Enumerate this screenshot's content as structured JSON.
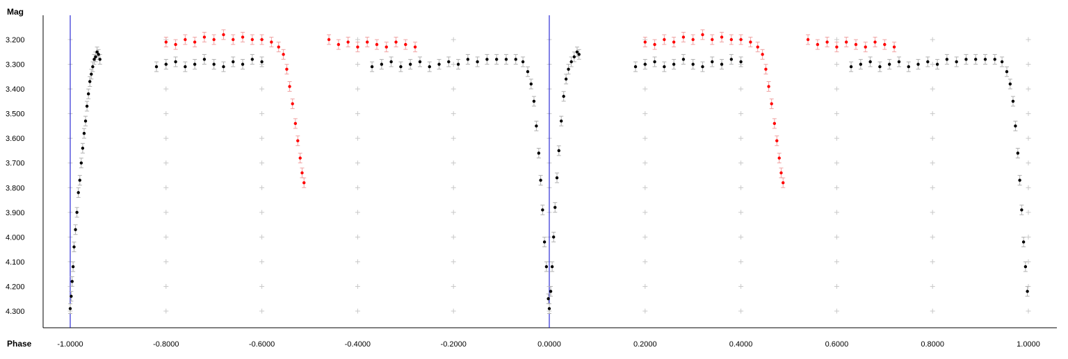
{
  "chart_data": {
    "type": "scatter",
    "title": "",
    "xlabel": "Phase",
    "ylabel": "Mag",
    "y_inverted": true,
    "xlim": [
      -1.0,
      1.0
    ],
    "ylim": [
      3.2,
      4.3
    ],
    "x_ticks": [
      "-1.0000",
      "-0.8000",
      "-0.6000",
      "-0.4000",
      "-0.2000",
      "0.0000",
      "0.2000",
      "0.4000",
      "0.6000",
      "0.8000",
      "1.0000"
    ],
    "x_tick_values": [
      -1.0,
      -0.8,
      -0.6,
      -0.4,
      -0.2,
      0.0,
      0.2,
      0.4,
      0.6,
      0.8,
      1.0
    ],
    "y_ticks": [
      "3.200",
      "3.300",
      "3.400",
      "3.500",
      "3.600",
      "3.700",
      "3.800",
      "3.900",
      "4.000",
      "4.100",
      "4.200",
      "4.300"
    ],
    "y_tick_values": [
      3.2,
      3.3,
      3.4,
      3.5,
      3.6,
      3.7,
      3.8,
      3.9,
      4.0,
      4.1,
      4.2,
      4.3
    ],
    "grid": "plus-markers",
    "reference_lines_x": [
      -1.0,
      0.0
    ],
    "colors": {
      "series_black": "#000000",
      "series_red": "#ff0000",
      "errorbar_black": "#b0b0b0",
      "errorbar_red": "#f0a0a0",
      "reference_line": "#0000cc",
      "grid_marker": "#c8c8c8"
    },
    "series": [
      {
        "color": "black",
        "points": [
          [
            -1.0,
            4.29
          ],
          [
            -0.998,
            4.24
          ],
          [
            -0.996,
            4.18
          ],
          [
            -0.994,
            4.12
          ],
          [
            -0.992,
            4.04
          ],
          [
            -0.989,
            3.97
          ],
          [
            -0.986,
            3.9
          ],
          [
            -0.983,
            3.82
          ],
          [
            -0.98,
            3.77
          ],
          [
            -0.977,
            3.7
          ],
          [
            -0.974,
            3.64
          ],
          [
            -0.971,
            3.58
          ],
          [
            -0.968,
            3.53
          ],
          [
            -0.965,
            3.47
          ],
          [
            -0.962,
            3.42
          ],
          [
            -0.959,
            3.37
          ],
          [
            -0.956,
            3.34
          ],
          [
            -0.953,
            3.31
          ],
          [
            -0.95,
            3.28
          ],
          [
            -0.947,
            3.27
          ],
          [
            -0.944,
            3.25
          ],
          [
            -0.941,
            3.26
          ],
          [
            -0.938,
            3.28
          ],
          [
            -0.82,
            3.31
          ],
          [
            -0.8,
            3.3
          ],
          [
            -0.78,
            3.29
          ],
          [
            -0.76,
            3.31
          ],
          [
            -0.74,
            3.3
          ],
          [
            -0.72,
            3.28
          ],
          [
            -0.7,
            3.3
          ],
          [
            -0.68,
            3.31
          ],
          [
            -0.66,
            3.29
          ],
          [
            -0.64,
            3.3
          ],
          [
            -0.62,
            3.28
          ],
          [
            -0.6,
            3.29
          ],
          [
            -0.37,
            3.31
          ],
          [
            -0.35,
            3.3
          ],
          [
            -0.33,
            3.29
          ],
          [
            -0.31,
            3.31
          ],
          [
            -0.29,
            3.3
          ],
          [
            -0.27,
            3.29
          ],
          [
            -0.25,
            3.31
          ],
          [
            -0.23,
            3.3
          ],
          [
            -0.21,
            3.29
          ],
          [
            -0.19,
            3.3
          ],
          [
            -0.17,
            3.28
          ],
          [
            -0.15,
            3.29
          ],
          [
            -0.13,
            3.28
          ],
          [
            -0.11,
            3.28
          ],
          [
            -0.09,
            3.28
          ],
          [
            -0.07,
            3.28
          ],
          [
            -0.055,
            3.29
          ],
          [
            -0.045,
            3.33
          ],
          [
            -0.038,
            3.38
          ],
          [
            -0.032,
            3.45
          ],
          [
            -0.027,
            3.55
          ],
          [
            -0.022,
            3.66
          ],
          [
            -0.018,
            3.77
          ],
          [
            -0.014,
            3.89
          ],
          [
            -0.01,
            4.02
          ],
          [
            -0.006,
            4.12
          ],
          [
            -0.002,
            4.25
          ],
          [
            0.0,
            4.29
          ],
          [
            0.003,
            4.22
          ],
          [
            0.006,
            4.12
          ],
          [
            0.009,
            4.0
          ],
          [
            0.012,
            3.88
          ],
          [
            0.016,
            3.76
          ],
          [
            0.02,
            3.65
          ],
          [
            0.025,
            3.53
          ],
          [
            0.03,
            3.43
          ],
          [
            0.035,
            3.36
          ],
          [
            0.04,
            3.32
          ],
          [
            0.046,
            3.29
          ],
          [
            0.052,
            3.27
          ],
          [
            0.058,
            3.25
          ],
          [
            0.062,
            3.26
          ],
          [
            0.18,
            3.31
          ],
          [
            0.2,
            3.3
          ],
          [
            0.22,
            3.29
          ],
          [
            0.24,
            3.31
          ],
          [
            0.26,
            3.3
          ],
          [
            0.28,
            3.28
          ],
          [
            0.3,
            3.3
          ],
          [
            0.32,
            3.31
          ],
          [
            0.34,
            3.29
          ],
          [
            0.36,
            3.3
          ],
          [
            0.38,
            3.28
          ],
          [
            0.4,
            3.29
          ],
          [
            0.63,
            3.31
          ],
          [
            0.65,
            3.3
          ],
          [
            0.67,
            3.29
          ],
          [
            0.69,
            3.31
          ],
          [
            0.71,
            3.3
          ],
          [
            0.73,
            3.29
          ],
          [
            0.75,
            3.31
          ],
          [
            0.77,
            3.3
          ],
          [
            0.79,
            3.29
          ],
          [
            0.81,
            3.3
          ],
          [
            0.83,
            3.28
          ],
          [
            0.85,
            3.29
          ],
          [
            0.87,
            3.28
          ],
          [
            0.89,
            3.28
          ],
          [
            0.91,
            3.28
          ],
          [
            0.93,
            3.28
          ],
          [
            0.945,
            3.29
          ],
          [
            0.955,
            3.33
          ],
          [
            0.962,
            3.38
          ],
          [
            0.968,
            3.45
          ],
          [
            0.973,
            3.55
          ],
          [
            0.978,
            3.66
          ],
          [
            0.982,
            3.77
          ],
          [
            0.986,
            3.89
          ],
          [
            0.99,
            4.02
          ],
          [
            0.994,
            4.12
          ],
          [
            0.998,
            4.22
          ]
        ]
      },
      {
        "color": "red",
        "points": [
          [
            -0.8,
            3.21
          ],
          [
            -0.78,
            3.22
          ],
          [
            -0.76,
            3.2
          ],
          [
            -0.74,
            3.21
          ],
          [
            -0.72,
            3.19
          ],
          [
            -0.7,
            3.2
          ],
          [
            -0.68,
            3.18
          ],
          [
            -0.66,
            3.2
          ],
          [
            -0.64,
            3.19
          ],
          [
            -0.62,
            3.2
          ],
          [
            -0.6,
            3.2
          ],
          [
            -0.58,
            3.21
          ],
          [
            -0.565,
            3.23
          ],
          [
            -0.555,
            3.26
          ],
          [
            -0.548,
            3.32
          ],
          [
            -0.542,
            3.39
          ],
          [
            -0.536,
            3.46
          ],
          [
            -0.53,
            3.54
          ],
          [
            -0.525,
            3.61
          ],
          [
            -0.52,
            3.68
          ],
          [
            -0.516,
            3.74
          ],
          [
            -0.512,
            3.78
          ],
          [
            -0.46,
            3.2
          ],
          [
            -0.44,
            3.22
          ],
          [
            -0.42,
            3.21
          ],
          [
            -0.4,
            3.23
          ],
          [
            -0.38,
            3.21
          ],
          [
            -0.36,
            3.22
          ],
          [
            -0.34,
            3.23
          ],
          [
            -0.32,
            3.21
          ],
          [
            -0.3,
            3.22
          ],
          [
            -0.28,
            3.23
          ],
          [
            0.2,
            3.21
          ],
          [
            0.22,
            3.22
          ],
          [
            0.24,
            3.2
          ],
          [
            0.26,
            3.21
          ],
          [
            0.28,
            3.19
          ],
          [
            0.3,
            3.2
          ],
          [
            0.32,
            3.18
          ],
          [
            0.34,
            3.2
          ],
          [
            0.36,
            3.19
          ],
          [
            0.38,
            3.2
          ],
          [
            0.4,
            3.2
          ],
          [
            0.42,
            3.21
          ],
          [
            0.435,
            3.23
          ],
          [
            0.445,
            3.26
          ],
          [
            0.452,
            3.32
          ],
          [
            0.458,
            3.39
          ],
          [
            0.464,
            3.46
          ],
          [
            0.47,
            3.54
          ],
          [
            0.475,
            3.61
          ],
          [
            0.48,
            3.68
          ],
          [
            0.484,
            3.74
          ],
          [
            0.488,
            3.78
          ],
          [
            0.54,
            3.2
          ],
          [
            0.56,
            3.22
          ],
          [
            0.58,
            3.21
          ],
          [
            0.6,
            3.23
          ],
          [
            0.62,
            3.21
          ],
          [
            0.64,
            3.22
          ],
          [
            0.66,
            3.23
          ],
          [
            0.68,
            3.21
          ],
          [
            0.7,
            3.22
          ],
          [
            0.72,
            3.23
          ]
        ]
      }
    ]
  }
}
